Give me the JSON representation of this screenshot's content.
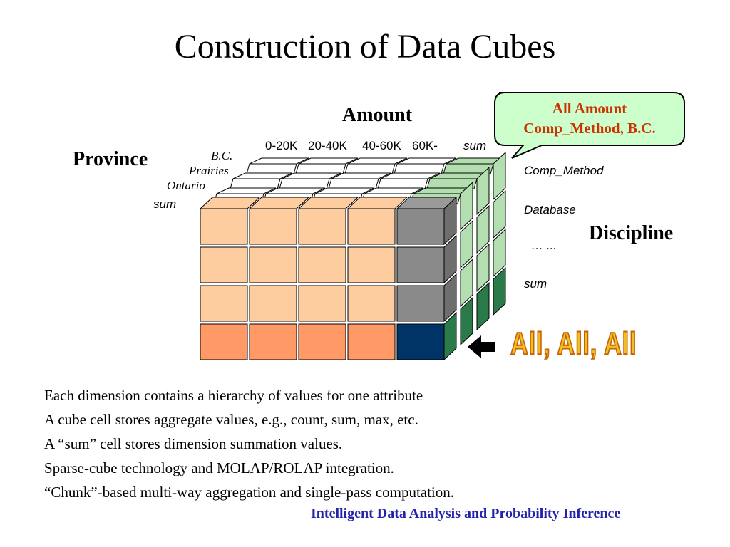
{
  "slide": {
    "title": "Construction of Data Cubes",
    "amount_label": "Amount",
    "province_label": "Province",
    "discipline_label": "Discipline",
    "amount_values": [
      "0-20K",
      "20-40K",
      "40-60K",
      "60K-",
      "sum"
    ],
    "province_values": [
      "B.C.",
      "Prairies",
      "Ontario",
      "sum"
    ],
    "discipline_values": [
      "Comp_Method",
      "Database",
      "… ...",
      "sum"
    ],
    "callout": {
      "line1": "All Amount",
      "line2": "Comp_Method, B.C."
    },
    "all_label": "All, All, All",
    "bullets": [
      "Each dimension contains a hierarchy of  values for one attribute",
      "A cube cell stores aggregate values, e.g., count,  sum, max, etc.",
      "A “sum” cell stores dimension summation values.",
      "Sparse-cube technology and MOLAP/ROLAP integration.",
      "“Chunk”-based multi-way aggregation and single-pass computation."
    ],
    "footer": "Intelligent Data Analysis and Probability Inference"
  },
  "colors": {
    "peach": "#fdcc9f",
    "orange": "#ff9966",
    "gray": "#8a8a8a",
    "navy": "#003366",
    "light_green": "#b3dfb0",
    "dark_green": "#2a7a4a",
    "footer_blue": "#2222aa",
    "callout_fill": "#ccffcc"
  }
}
